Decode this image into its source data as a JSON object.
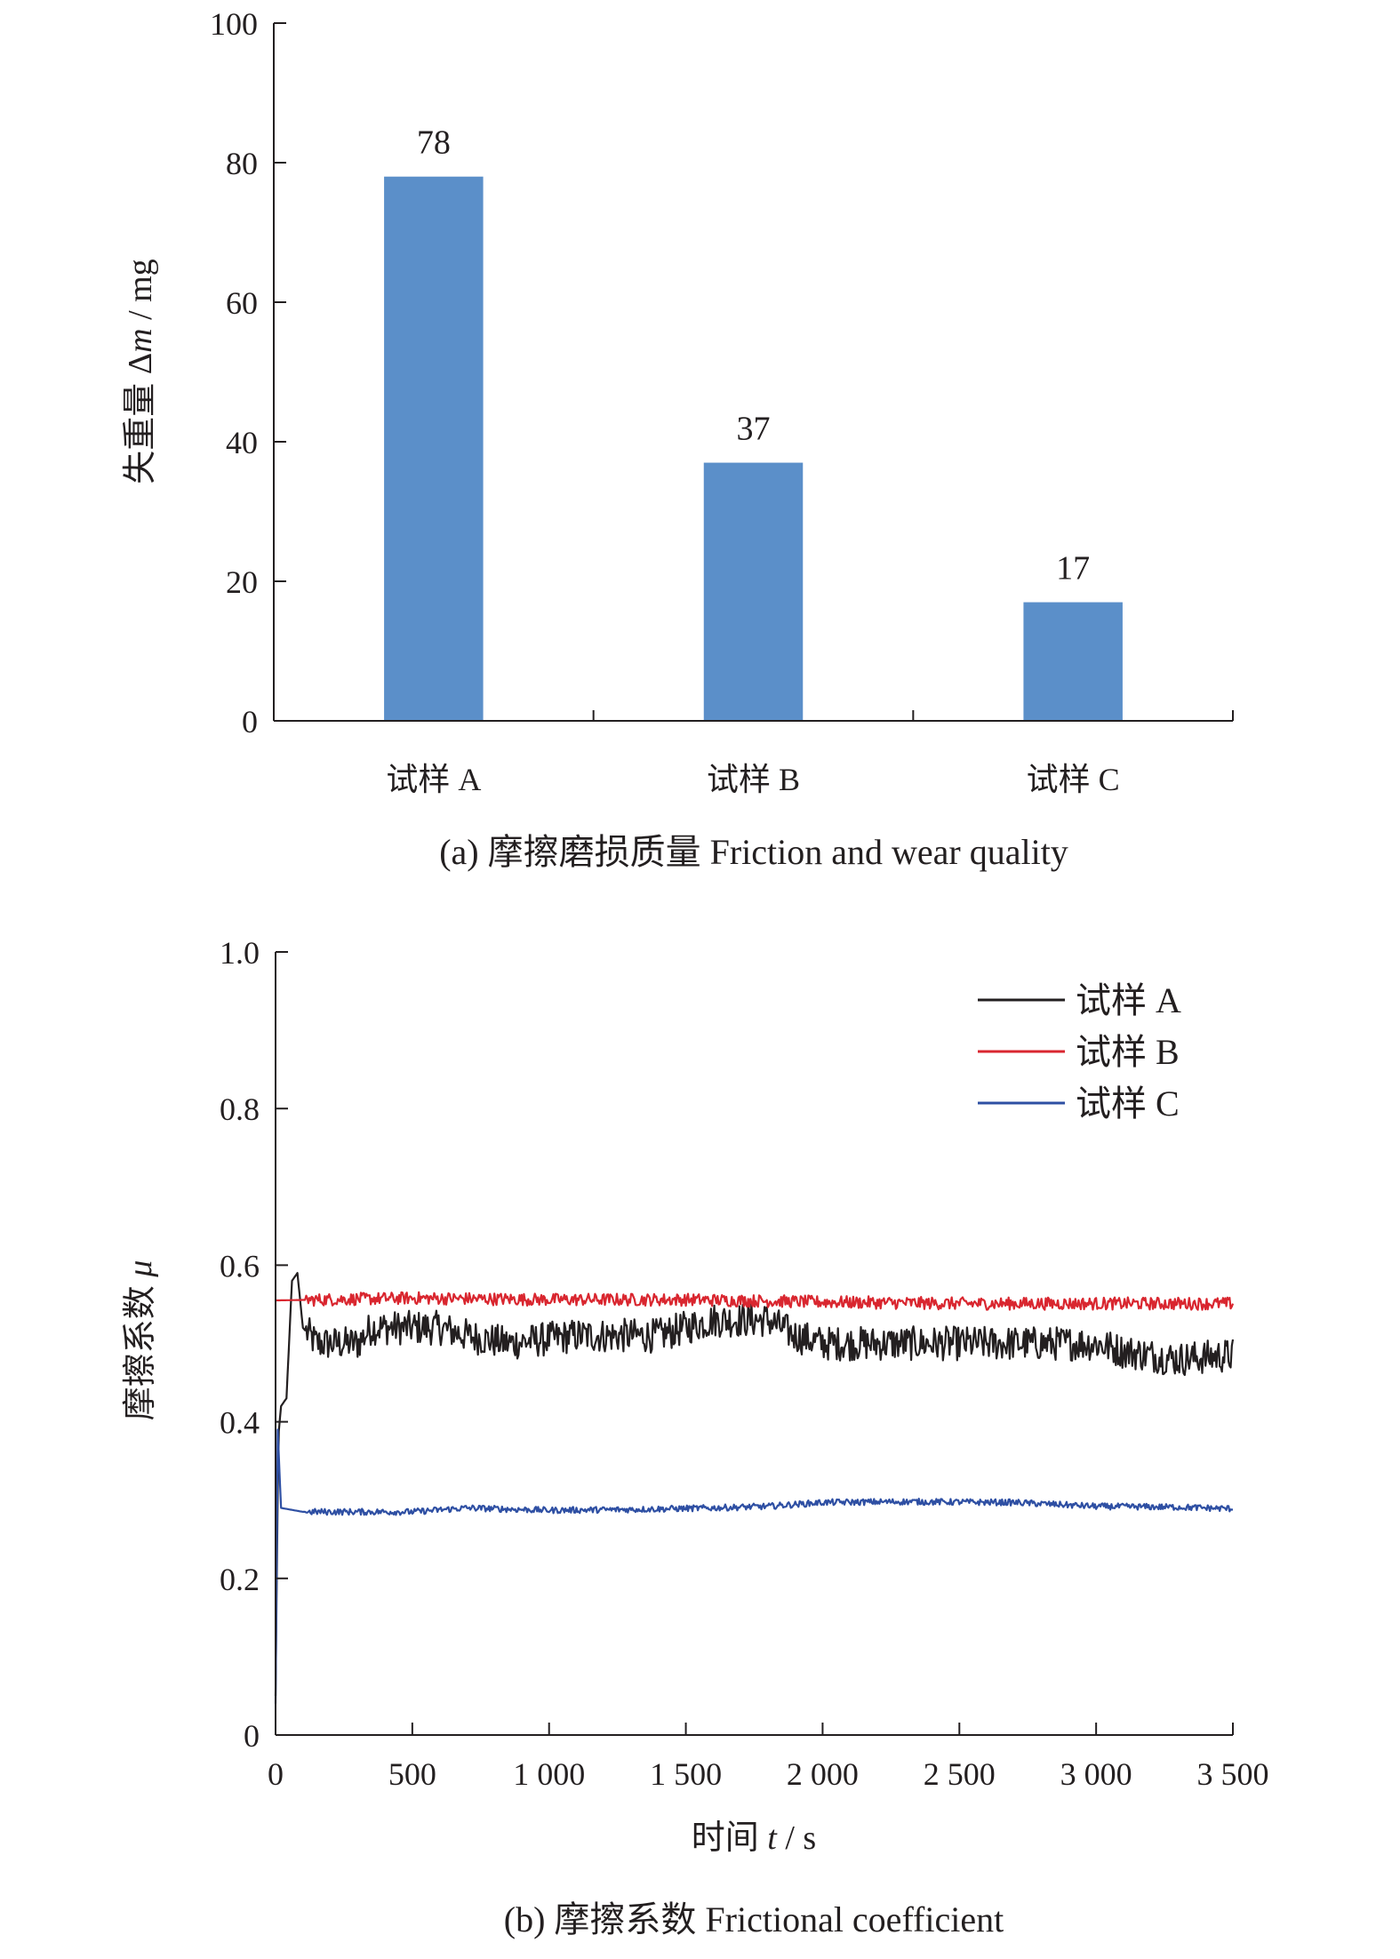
{
  "chart_data": [
    {
      "type": "bar",
      "categories": [
        "试样 A",
        "试样 B",
        "试样 C"
      ],
      "values": [
        78,
        37,
        17
      ],
      "data_labels": [
        "78",
        "37",
        "17"
      ],
      "ylabel_text": "失重量 Δ",
      "ylabel_var": "m",
      "ylabel_unit": " / mg",
      "xlabel": "",
      "ylim": [
        0,
        100
      ],
      "yticks": [
        0,
        20,
        40,
        60,
        80,
        100
      ],
      "ytick_labels": [
        "0",
        "20",
        "40",
        "60",
        "80",
        "100"
      ],
      "caption": "(a) 摩擦磨损质量 Friction and wear quality",
      "bar_color": "#5b8fc9",
      "grid": false
    },
    {
      "type": "line",
      "ylabel_text": "摩擦系数 ",
      "ylabel_var": "μ",
      "xlabel_text": "时间 ",
      "xlabel_var": "t",
      "xlabel_unit": " / s",
      "xlim": [
        0,
        3500
      ],
      "ylim": [
        0,
        1.0
      ],
      "xticks": [
        0,
        500,
        1000,
        1500,
        2000,
        2500,
        3000,
        3500
      ],
      "xtick_labels": [
        "0",
        "500",
        "1 000",
        "1 500",
        "2 000",
        "2 500",
        "3 000",
        "3 500"
      ],
      "yticks": [
        0,
        0.2,
        0.4,
        0.6,
        0.8,
        1.0
      ],
      "ytick_labels": [
        "0",
        "0.2",
        "0.4",
        "0.6",
        "0.8",
        "1.0"
      ],
      "legend_position": "top-right",
      "grid": false,
      "caption": "(b) 摩擦系数 Frictional coefficient",
      "series": [
        {
          "name": "试样 A",
          "color": "#231f20",
          "noise": 0.022,
          "points": [
            [
              0,
              0.05
            ],
            [
              10,
              0.38
            ],
            [
              20,
              0.42
            ],
            [
              40,
              0.43
            ],
            [
              60,
              0.58
            ],
            [
              80,
              0.59
            ],
            [
              100,
              0.52
            ],
            [
              150,
              0.5
            ],
            [
              300,
              0.5
            ],
            [
              350,
              0.52
            ],
            [
              600,
              0.52
            ],
            [
              700,
              0.51
            ],
            [
              850,
              0.5
            ],
            [
              1100,
              0.51
            ],
            [
              1400,
              0.51
            ],
            [
              1500,
              0.52
            ],
            [
              1600,
              0.53
            ],
            [
              1800,
              0.53
            ],
            [
              1900,
              0.51
            ],
            [
              2000,
              0.5
            ],
            [
              2300,
              0.5
            ],
            [
              2600,
              0.5
            ],
            [
              2800,
              0.5
            ],
            [
              3000,
              0.5
            ],
            [
              3100,
              0.49
            ],
            [
              3300,
              0.48
            ],
            [
              3500,
              0.485
            ]
          ]
        },
        {
          "name": "试样 B",
          "color": "#d9262f",
          "noise": 0.008,
          "points": [
            [
              0,
              0.555
            ],
            [
              500,
              0.558
            ],
            [
              1000,
              0.556
            ],
            [
              1500,
              0.556
            ],
            [
              2000,
              0.553
            ],
            [
              2500,
              0.551
            ],
            [
              3000,
              0.551
            ],
            [
              3500,
              0.551
            ]
          ]
        },
        {
          "name": "试样 C",
          "color": "#2e4fa3",
          "noise": 0.004,
          "points": [
            [
              0,
              0.04
            ],
            [
              8,
              0.39
            ],
            [
              20,
              0.29
            ],
            [
              100,
              0.285
            ],
            [
              500,
              0.285
            ],
            [
              700,
              0.29
            ],
            [
              1000,
              0.287
            ],
            [
              1300,
              0.288
            ],
            [
              1600,
              0.29
            ],
            [
              1800,
              0.292
            ],
            [
              2000,
              0.297
            ],
            [
              2300,
              0.298
            ],
            [
              2700,
              0.297
            ],
            [
              3000,
              0.292
            ],
            [
              3300,
              0.291
            ],
            [
              3500,
              0.289
            ]
          ]
        }
      ]
    }
  ]
}
